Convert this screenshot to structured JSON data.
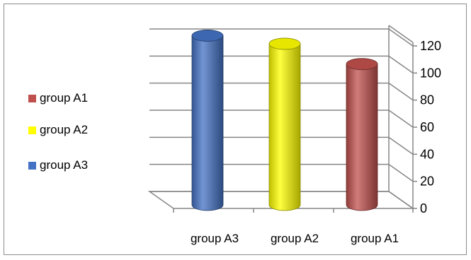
{
  "chart_data": {
    "type": "bar",
    "style": "3d-cylinder",
    "categories": [
      "group A3",
      "group A2",
      "group A1"
    ],
    "values": [
      125,
      119,
      104
    ],
    "colors": [
      "#4472c4",
      "#ffff00",
      "#c0504d"
    ],
    "legend": [
      {
        "label": "group A1",
        "color": "#c0504d"
      },
      {
        "label": "group A2",
        "color": "#ffff00"
      },
      {
        "label": "group A3",
        "color": "#4472c4"
      }
    ],
    "y_ticks": [
      "0",
      "20",
      "40",
      "60",
      "80",
      "100",
      "120"
    ],
    "ylim": [
      0,
      120
    ],
    "y_axis_side": "right",
    "legend_position": "left",
    "grid": true
  }
}
